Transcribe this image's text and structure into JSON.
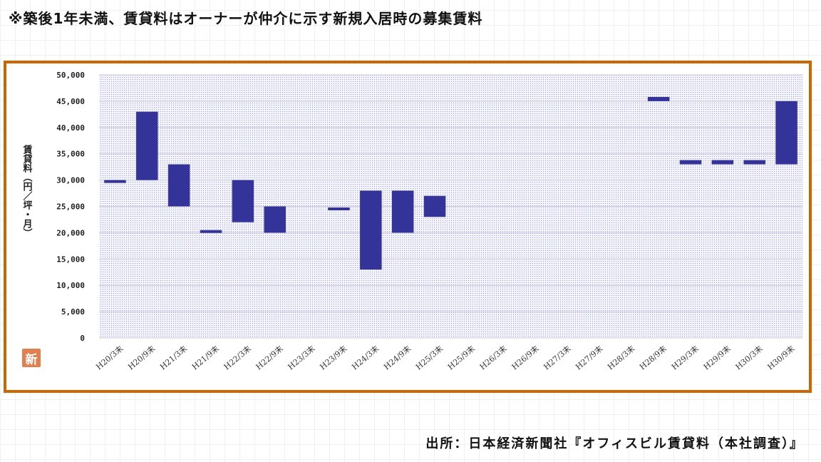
{
  "note": "※築後1年未満、賃貸料はオーナーが仲介に示す新規入居時の募集賃料",
  "source": "出所：日本経済新聞社『オフィスビル賃貸料（本社調査）』",
  "logo_text": "新",
  "colors": {
    "bar": "#333399",
    "frame": "#cc6600",
    "plot_dots": "#9999cc"
  },
  "chart_data": {
    "type": "bar",
    "subtype": "floating-range",
    "categories": [
      "H20/3末",
      "H20/9末",
      "H21/3末",
      "H21/9末",
      "H22/3末",
      "H22/9末",
      "H23/3末",
      "H23/9末",
      "H24/3末",
      "H24/9末",
      "H25/3末",
      "H25/9末",
      "H26/3末",
      "H26/9末",
      "H27/3末",
      "H27/9末",
      "H28/3末",
      "H28/9末",
      "H29/3末",
      "H29/9末",
      "H30/3末",
      "H30/9末"
    ],
    "series": [
      {
        "low": [
          29500,
          30000,
          25000,
          20000,
          22000,
          20000,
          null,
          24500,
          13000,
          20000,
          23000,
          null,
          null,
          null,
          null,
          null,
          null,
          45000,
          33000,
          33000,
          33000,
          33000
        ],
        "high": [
          30000,
          43000,
          33000,
          20500,
          30000,
          25000,
          null,
          24800,
          28000,
          28000,
          27000,
          null,
          null,
          null,
          null,
          null,
          null,
          45800,
          33800,
          33800,
          33800,
          45000
        ]
      }
    ],
    "ylabel": "賃貸料（円／坪・月）",
    "ylim": [
      0,
      50000
    ],
    "yticks": [
      0,
      5000,
      10000,
      15000,
      20000,
      25000,
      30000,
      35000,
      40000,
      45000,
      50000
    ],
    "ytick_labels": [
      "0",
      "5,000",
      "10,000",
      "15,000",
      "20,000",
      "25,000",
      "30,000",
      "35,000",
      "40,000",
      "45,000",
      "50,000"
    ],
    "grid": true,
    "legend": "none"
  }
}
